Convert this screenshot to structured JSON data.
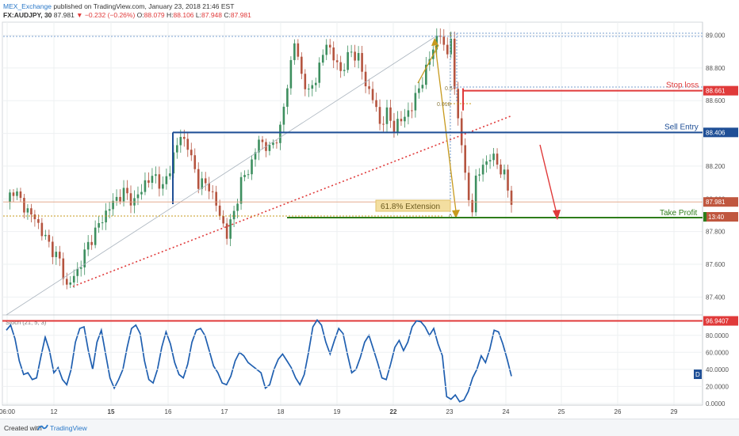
{
  "header": {
    "author": "MEX_Exchange",
    "published": "published on TradingView.com, January 23, 2018 21:46 EST",
    "symbol": "FX:AUDJPY, 30",
    "last": "87.981",
    "change": "−0.232 (−0.26%)",
    "ohlc_prefix": "O:",
    "open": "88.079",
    "high_prefix": "H:",
    "high": "88.106",
    "low_prefix": "L:",
    "low": "87.948",
    "close_prefix": "C:",
    "close": "87.981"
  },
  "footer": {
    "created_with": "Created with",
    "brand": "TradingView"
  },
  "colors": {
    "up": "#3d8f5f",
    "down": "#b5543f",
    "stop_loss": "#e03a3a",
    "sell_entry": "#1f4f96",
    "take_profit": "#2e7d1b",
    "fib": "#c79a1e",
    "arrow": "#e03a3a",
    "stoch": "#1f5fb0",
    "grid": "#eef0f2"
  },
  "chart_data": [
    {
      "type": "candlestick",
      "title": "FX:AUDJPY, 30",
      "x_ticks": [
        "06:00",
        "12",
        "15",
        "16",
        "17",
        "18",
        "19",
        "22",
        "23",
        "24",
        "25",
        "26",
        "29"
      ],
      "y_ticks": [
        "89.000",
        "88.800",
        "88.600",
        "88.400",
        "88.200",
        "88.000",
        "87.800",
        "87.600",
        "87.400"
      ],
      "ylim": [
        87.3,
        89.08
      ],
      "close_path": [
        [
          0,
          87.98
        ],
        [
          2,
          88.06
        ],
        [
          5,
          87.95
        ],
        [
          8,
          87.88
        ],
        [
          12,
          87.72
        ],
        [
          15,
          87.62
        ],
        [
          17,
          87.46
        ],
        [
          20,
          87.56
        ],
        [
          23,
          87.72
        ],
        [
          27,
          87.88
        ],
        [
          30,
          87.98
        ],
        [
          33,
          88.04
        ],
        [
          36,
          87.98
        ],
        [
          39,
          88.1
        ],
        [
          42,
          88.14
        ],
        [
          44,
          88.06
        ],
        [
          47,
          88.26
        ],
        [
          49,
          88.39
        ],
        [
          51,
          88.32
        ],
        [
          54,
          88.1
        ],
        [
          57,
          88.08
        ],
        [
          60,
          87.9
        ],
        [
          62,
          87.78
        ],
        [
          64,
          87.92
        ],
        [
          66,
          88.1
        ],
        [
          69,
          88.22
        ],
        [
          71,
          88.36
        ],
        [
          74,
          88.3
        ],
        [
          77,
          88.42
        ],
        [
          79,
          88.7
        ],
        [
          81,
          88.96
        ],
        [
          83,
          88.76
        ],
        [
          85,
          88.64
        ],
        [
          88,
          88.8
        ],
        [
          90,
          88.96
        ],
        [
          92,
          88.86
        ],
        [
          94,
          88.78
        ],
        [
          97,
          88.9
        ],
        [
          99,
          88.86
        ],
        [
          101,
          88.7
        ],
        [
          103,
          88.62
        ],
        [
          105,
          88.46
        ],
        [
          107,
          88.52
        ],
        [
          109,
          88.44
        ],
        [
          111,
          88.48
        ],
        [
          114,
          88.56
        ],
        [
          116,
          88.68
        ],
        [
          118,
          88.78
        ],
        [
          120,
          88.94
        ],
        [
          122,
          89.0
        ],
        [
          124,
          88.88
        ],
        [
          125,
          89.0
        ],
        [
          126,
          88.64
        ],
        [
          127,
          88.5
        ],
        [
          128,
          88.36
        ],
        [
          129,
          88.12
        ],
        [
          130,
          88.0
        ],
        [
          131,
          87.94
        ],
        [
          132,
          88.12
        ],
        [
          134,
          88.2
        ],
        [
          136,
          88.26
        ],
        [
          138,
          88.22
        ],
        [
          140,
          88.14
        ],
        [
          142,
          87.98
        ]
      ],
      "price_levels": [
        {
          "label": "Stop loss",
          "value": 88.661,
          "value_label": "88.661"
        },
        {
          "label": "Sell Entry",
          "value": 88.406,
          "value_label": "88.406"
        },
        {
          "label": "Take Profit",
          "value": 87.92
        }
      ],
      "last_price": {
        "value": 87.981,
        "label": "87.981",
        "countdown": "13:40"
      },
      "fibonacci": [
        {
          "label": "0.5",
          "value": 88.76
        },
        {
          "label": "0.618",
          "value": 88.66
        },
        {
          "label": "1",
          "value": 89.05
        },
        {
          "label": "0",
          "value": 87.92
        }
      ],
      "annotations": [
        "61.8% Extension"
      ]
    },
    {
      "type": "line",
      "title": "Stoch (21, 5, 3)",
      "y_ticks": [
        "80.0000",
        "60.0000",
        "40.0000",
        "20.0000",
        "0.0000"
      ],
      "ylim": [
        -2,
        103
      ],
      "threshold": {
        "value": 96.9407,
        "label": "96.9407"
      },
      "badge": "D",
      "series": [
        {
          "name": "Stoch (21, 5, 3)",
          "values": [
            86,
            92,
            76,
            50,
            34,
            36,
            28,
            30,
            55,
            78,
            62,
            36,
            42,
            28,
            22,
            40,
            72,
            88,
            90,
            62,
            40,
            72,
            86,
            58,
            30,
            18,
            28,
            40,
            66,
            88,
            92,
            82,
            50,
            28,
            24,
            40,
            66,
            84,
            70,
            48,
            34,
            30,
            46,
            72,
            86,
            88,
            80,
            62,
            44,
            36,
            24,
            22,
            32,
            50,
            60,
            56,
            48,
            44,
            40,
            36,
            18,
            22,
            40,
            52,
            58,
            50,
            42,
            30,
            22,
            34,
            60,
            90,
            98,
            92,
            72,
            58,
            74,
            88,
            82,
            58,
            36,
            40,
            54,
            72,
            80,
            64,
            48,
            30,
            28,
            46,
            66,
            74,
            62,
            72,
            90,
            97,
            96,
            90,
            80,
            88,
            70,
            56,
            8,
            5,
            10,
            2,
            4,
            14,
            30,
            40,
            56,
            48,
            64,
            86,
            84,
            70,
            52,
            32
          ]
        }
      ]
    }
  ]
}
